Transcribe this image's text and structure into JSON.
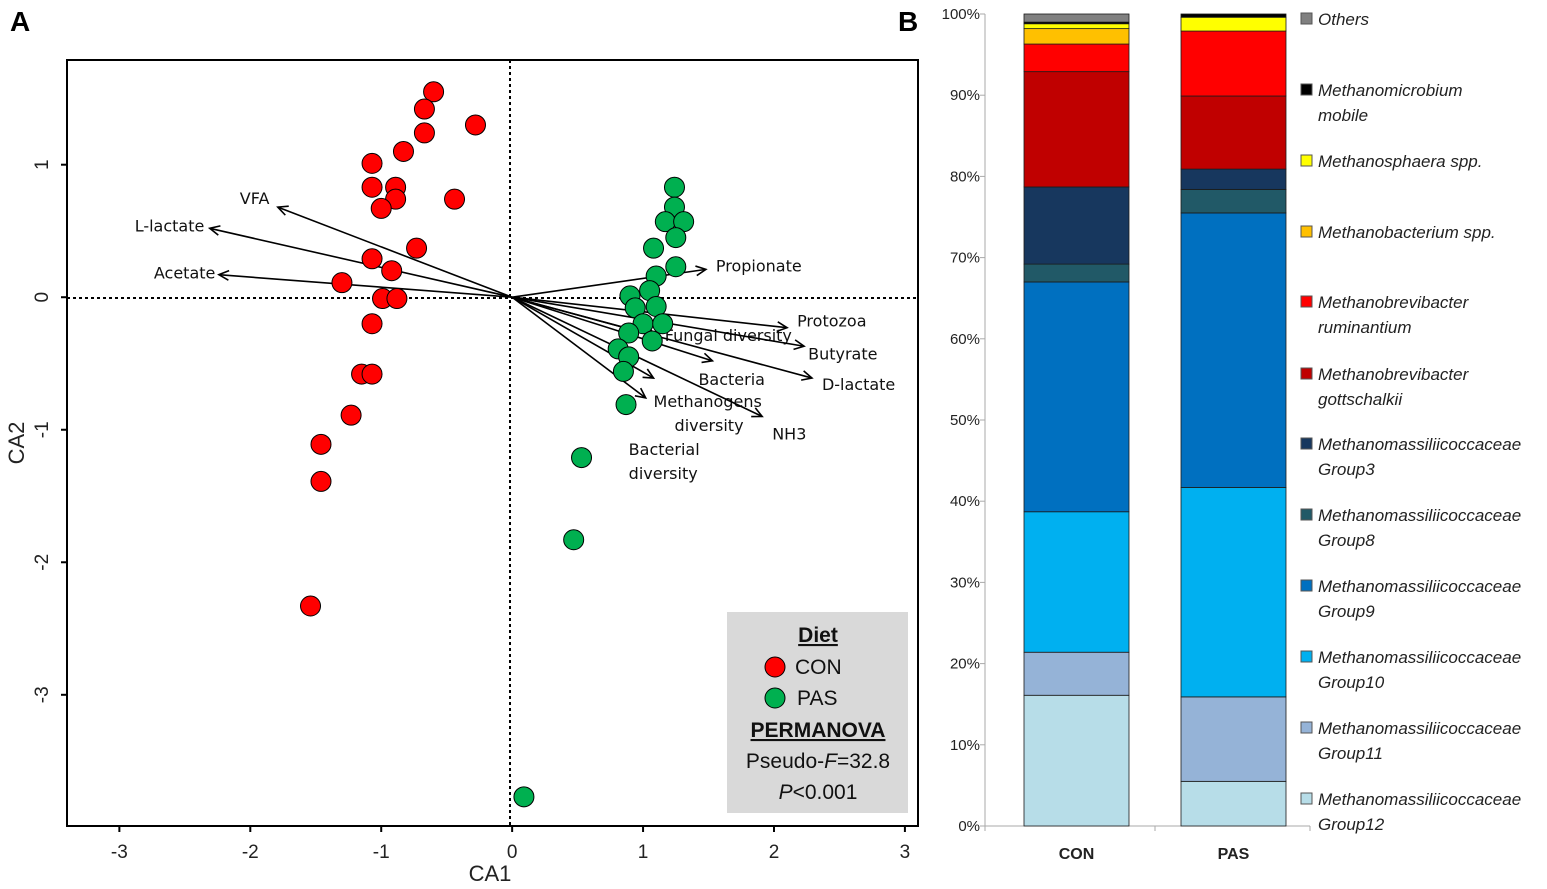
{
  "chart_data": [
    {
      "panel_label": "A",
      "type": "scatter",
      "xlabel": "CA1",
      "ylabel": "CA2",
      "xlim": [
        -3.4,
        3.1
      ],
      "ylim": [
        -3.99,
        1.79
      ],
      "xticks": [
        "-3",
        "-2",
        "-1",
        "0",
        "1",
        "2",
        "3"
      ],
      "yticks": [
        "1",
        "0",
        "-1",
        "-2",
        "-3"
      ],
      "series": [
        {
          "name": "CON",
          "color": "#ff0000",
          "points": [
            [
              -0.6,
              1.55
            ],
            [
              -0.67,
              1.42
            ],
            [
              -0.28,
              1.3
            ],
            [
              -0.67,
              1.24
            ],
            [
              -0.83,
              1.1
            ],
            [
              -1.07,
              1.01
            ],
            [
              -1.07,
              0.83
            ],
            [
              -0.89,
              0.83
            ],
            [
              -0.89,
              0.74
            ],
            [
              -1.0,
              0.67
            ],
            [
              -0.44,
              0.74
            ],
            [
              -0.73,
              0.37
            ],
            [
              -1.07,
              0.29
            ],
            [
              -0.92,
              0.2
            ],
            [
              -1.3,
              0.11
            ],
            [
              -0.99,
              -0.01
            ],
            [
              -0.88,
              -0.01
            ],
            [
              -1.07,
              -0.2
            ],
            [
              -1.15,
              -0.58
            ],
            [
              -1.07,
              -0.58
            ],
            [
              -1.23,
              -0.89
            ],
            [
              -1.46,
              -1.11
            ],
            [
              -1.46,
              -1.39
            ],
            [
              -1.54,
              -2.33
            ]
          ]
        },
        {
          "name": "PAS",
          "color": "#00b050",
          "points": [
            [
              1.24,
              0.83
            ],
            [
              1.24,
              0.68
            ],
            [
              1.17,
              0.57
            ],
            [
              1.31,
              0.57
            ],
            [
              1.25,
              0.45
            ],
            [
              1.08,
              0.37
            ],
            [
              1.25,
              0.23
            ],
            [
              1.1,
              0.16
            ],
            [
              1.05,
              0.05
            ],
            [
              0.9,
              0.01
            ],
            [
              0.94,
              -0.08
            ],
            [
              1.1,
              -0.07
            ],
            [
              1.0,
              -0.2
            ],
            [
              1.15,
              -0.2
            ],
            [
              0.89,
              -0.27
            ],
            [
              1.07,
              -0.33
            ],
            [
              0.81,
              -0.39
            ],
            [
              0.89,
              -0.45
            ],
            [
              0.85,
              -0.56
            ],
            [
              0.87,
              -0.81
            ],
            [
              0.53,
              -1.21
            ],
            [
              0.47,
              -1.83
            ],
            [
              0.09,
              -3.77
            ]
          ]
        }
      ],
      "vectors": [
        {
          "label": "VFA",
          "x": -1.79,
          "y": 0.68
        },
        {
          "label": "L-lactate",
          "x": -2.31,
          "y": 0.52
        },
        {
          "label": "Acetate",
          "x": -2.24,
          "y": 0.17
        },
        {
          "label": "Propionate",
          "x": 1.48,
          "y": 0.21
        },
        {
          "label": "Protozoa",
          "x": 2.1,
          "y": -0.23
        },
        {
          "label": "Fungal diversity",
          "x": 1.12,
          "y": -0.3
        },
        {
          "label": "Butyrate",
          "x": 2.23,
          "y": -0.37
        },
        {
          "label": "Bacteria",
          "x": 1.53,
          "y": -0.48
        },
        {
          "label": "D-lactate",
          "x": 2.29,
          "y": -0.61
        },
        {
          "label": [
            "Methanogens",
            "diversity"
          ],
          "x": 1.08,
          "y": -0.61
        },
        {
          "label": "NH3",
          "x": 1.91,
          "y": -0.9
        },
        {
          "label": [
            "Bacterial",
            "diversity"
          ],
          "x": 1.02,
          "y": -0.76
        }
      ],
      "legend": {
        "title": "Diet",
        "entries": [
          "CON",
          "PAS"
        ],
        "stat_title": "PERMANOVA",
        "stat_line1_prefix": "Pseudo-",
        "stat_line1_italic": "F",
        "stat_line1_suffix": "=32.8",
        "stat_line2_italic": "P",
        "stat_line2_suffix": "<0.001",
        "placement": "bottom-right"
      }
    },
    {
      "panel_label": "B",
      "type": "bar",
      "stacked": true,
      "categories": [
        "CON",
        "PAS"
      ],
      "ylim": [
        0,
        100
      ],
      "yticks": [
        "0%",
        "10%",
        "20%",
        "30%",
        "40%",
        "50%",
        "60%",
        "70%",
        "80%",
        "90%",
        "100%"
      ],
      "legend_placement": "right",
      "series": [
        {
          "name": [
            "Methanomassiliicoccaceae",
            "Group12"
          ],
          "color": "#b7dde8",
          "values": [
            16.1,
            5.5
          ]
        },
        {
          "name": [
            "Methanomassiliicoccaceae",
            "Group11"
          ],
          "color": "#95b3d7",
          "values": [
            5.3,
            10.4
          ]
        },
        {
          "name": [
            "Methanomassiliicoccaceae",
            "Group10"
          ],
          "color": "#00b0f0",
          "values": [
            17.3,
            25.8
          ]
        },
        {
          "name": [
            "Methanomassiliicoccaceae",
            "Group9"
          ],
          "color": "#0070c0",
          "values": [
            28.3,
            33.8
          ]
        },
        {
          "name": [
            "Methanomassiliicoccaceae",
            "Group8"
          ],
          "color": "#215967",
          "values": [
            2.2,
            2.9
          ]
        },
        {
          "name": [
            "Methanomassiliicoccaceae",
            "Group3"
          ],
          "color": "#17375e",
          "values": [
            9.5,
            2.5
          ]
        },
        {
          "name": [
            "Methanobrevibacter",
            "gottschalkii"
          ],
          "color": "#c00000",
          "values": [
            14.2,
            9.0
          ]
        },
        {
          "name": [
            "Methanobrevibacter",
            "ruminantium"
          ],
          "color": "#ff0000",
          "values": [
            3.4,
            8.0
          ]
        },
        {
          "name": [
            "Methanobacterium spp."
          ],
          "color": "#ffc000",
          "values": [
            1.9,
            0.0
          ]
        },
        {
          "name": [
            "Methanosphaera spp."
          ],
          "color": "#ffff00",
          "values": [
            0.6,
            1.7
          ]
        },
        {
          "name": [
            "Methanomicrobium",
            "mobile"
          ],
          "color": "#000000",
          "values": [
            0.2,
            0.4
          ]
        },
        {
          "name": [
            "Others"
          ],
          "color": "#808080",
          "values": [
            1.0,
            0.0
          ]
        }
      ]
    }
  ]
}
